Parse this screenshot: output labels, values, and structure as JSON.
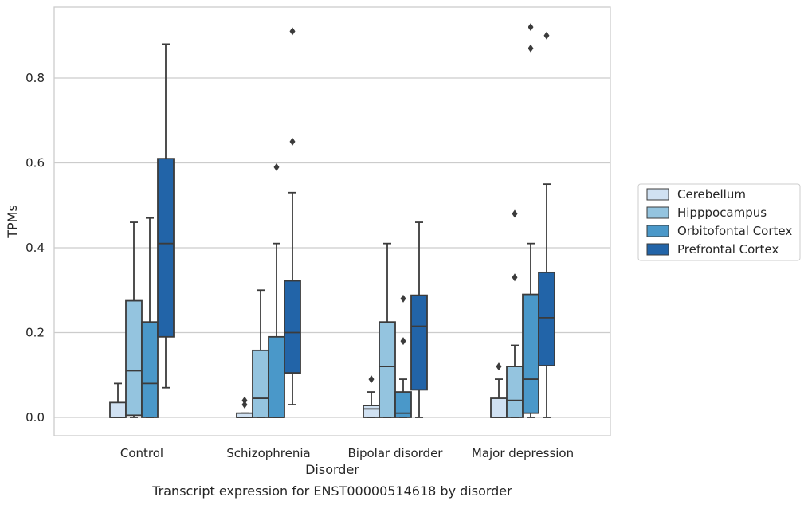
{
  "chart_data": {
    "type": "box",
    "title": "Transcript expression for ENST00000514618 by disorder",
    "xlabel": "Disorder",
    "ylabel": "TPMs",
    "ylim": [
      -0.045,
      0.965
    ],
    "yticks": [
      "0.0",
      "0.2",
      "0.4",
      "0.6",
      "0.8"
    ],
    "ytick_values": [
      0.0,
      0.2,
      0.4,
      0.6,
      0.8
    ],
    "grid": "horizontal",
    "legend_position": "right",
    "categories": [
      "Control",
      "Schizophrenia",
      "Bipolar disorder",
      "Major depression"
    ],
    "series": [
      {
        "name": "Cerebellum",
        "color": "#d0e1f2",
        "boxes": [
          {
            "whislo": 0.0,
            "q1": 0.0,
            "med": 0.0,
            "q3": 0.035,
            "whishi": 0.08,
            "fliers": []
          },
          {
            "whislo": 0.0,
            "q1": 0.0,
            "med": 0.0,
            "q3": 0.01,
            "whishi": 0.01,
            "fliers": [
              0.03,
              0.04
            ]
          },
          {
            "whislo": 0.0,
            "q1": 0.0,
            "med": 0.02,
            "q3": 0.028,
            "whishi": 0.06,
            "fliers": [
              0.09
            ]
          },
          {
            "whislo": 0.0,
            "q1": 0.0,
            "med": 0.0,
            "q3": 0.045,
            "whishi": 0.09,
            "fliers": [
              0.12
            ]
          }
        ]
      },
      {
        "name": "Hipppocampus",
        "color": "#94c4df",
        "boxes": [
          {
            "whislo": 0.0,
            "q1": 0.005,
            "med": 0.11,
            "q3": 0.275,
            "whishi": 0.46,
            "fliers": []
          },
          {
            "whislo": 0.0,
            "q1": 0.0,
            "med": 0.045,
            "q3": 0.158,
            "whishi": 0.3,
            "fliers": []
          },
          {
            "whislo": 0.0,
            "q1": 0.0,
            "med": 0.12,
            "q3": 0.225,
            "whishi": 0.41,
            "fliers": []
          },
          {
            "whislo": 0.0,
            "q1": 0.0,
            "med": 0.04,
            "q3": 0.12,
            "whishi": 0.17,
            "fliers": [
              0.33,
              0.48
            ]
          }
        ]
      },
      {
        "name": "Orbitofontal Cortex",
        "color": "#4a98c9",
        "boxes": [
          {
            "whislo": 0.0,
            "q1": 0.0,
            "med": 0.08,
            "q3": 0.225,
            "whishi": 0.47,
            "fliers": []
          },
          {
            "whislo": 0.0,
            "q1": 0.0,
            "med": 0.0,
            "q3": 0.19,
            "whishi": 0.41,
            "fliers": [
              0.59
            ]
          },
          {
            "whislo": 0.0,
            "q1": 0.0,
            "med": 0.01,
            "q3": 0.06,
            "whishi": 0.09,
            "fliers": [
              0.18,
              0.28
            ]
          },
          {
            "whislo": 0.0,
            "q1": 0.01,
            "med": 0.09,
            "q3": 0.29,
            "whishi": 0.41,
            "fliers": [
              0.87,
              0.92
            ]
          }
        ]
      },
      {
        "name": "Prefrontal Cortex",
        "color": "#2264a8",
        "boxes": [
          {
            "whislo": 0.07,
            "q1": 0.19,
            "med": 0.41,
            "q3": 0.61,
            "whishi": 0.88,
            "fliers": []
          },
          {
            "whislo": 0.03,
            "q1": 0.105,
            "med": 0.2,
            "q3": 0.322,
            "whishi": 0.53,
            "fliers": [
              0.65,
              0.91
            ]
          },
          {
            "whislo": 0.0,
            "q1": 0.065,
            "med": 0.215,
            "q3": 0.288,
            "whishi": 0.46,
            "fliers": []
          },
          {
            "whislo": 0.0,
            "q1": 0.122,
            "med": 0.235,
            "q3": 0.342,
            "whishi": 0.55,
            "fliers": [
              0.9
            ]
          }
        ]
      }
    ]
  }
}
